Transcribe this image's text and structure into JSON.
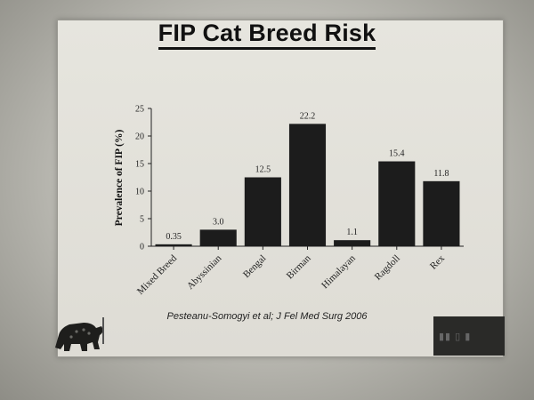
{
  "slide": {
    "title": "FIP Cat Breed Risk",
    "citation": "Pesteanu-Somogyi et al; J Fel Med Surg 2006"
  },
  "chart_data": {
    "type": "bar",
    "title": "FIP Cat Breed Risk",
    "xlabel": "",
    "ylabel": "Prevalence of FIP (%)",
    "ylim": [
      0,
      25
    ],
    "yticks": [
      0,
      5,
      10,
      15,
      20,
      25
    ],
    "categories": [
      "Mixed Breed",
      "Abyssinian",
      "Bengal",
      "Birman",
      "Himalayan",
      "Ragdoll",
      "Rex"
    ],
    "values": [
      0.35,
      3.0,
      12.5,
      22.2,
      1.1,
      15.4,
      11.8
    ],
    "value_labels": [
      "0.35",
      "3.0",
      "12.5",
      "22.2",
      "1.1",
      "15.4",
      "11.8"
    ],
    "grid": false,
    "legend": "none",
    "bar_color": "#1c1c1c"
  }
}
